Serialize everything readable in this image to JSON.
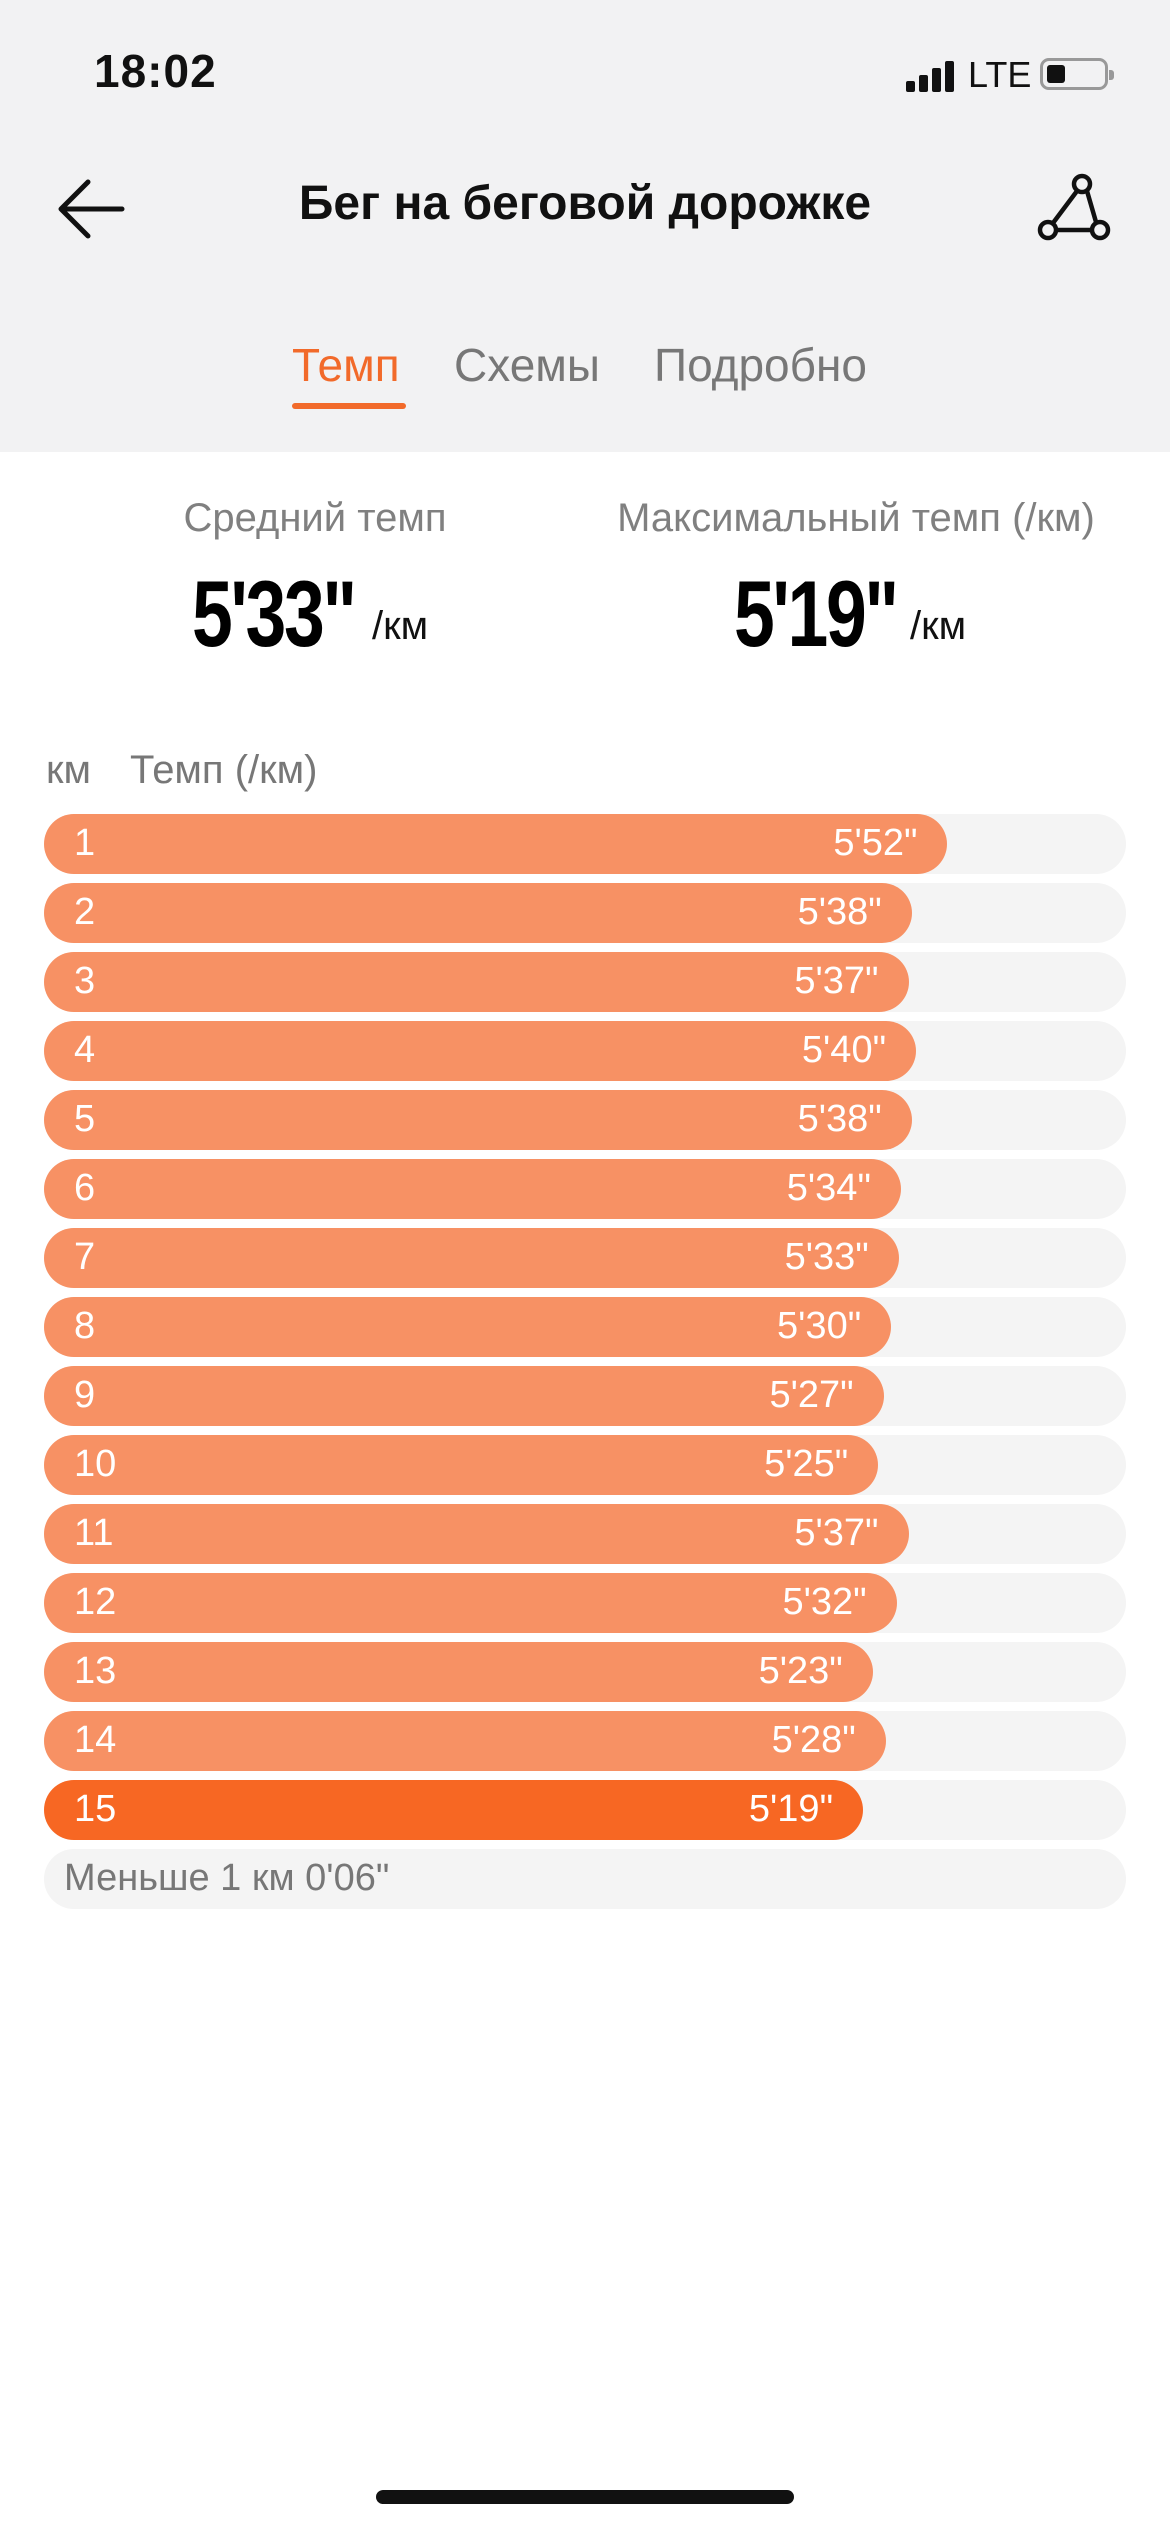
{
  "status_bar": {
    "time": "18:02",
    "network": "LTE",
    "battery": "low",
    "icons": [
      "signal-icon",
      "battery-icon"
    ]
  },
  "header": {
    "title": "Бег на беговой дорожке",
    "back_icon": "arrow-left-icon",
    "share_icon": "share-icon"
  },
  "tabs": [
    {
      "label": "Темп",
      "active": true
    },
    {
      "label": "Схемы",
      "active": false
    },
    {
      "label": "Подробно",
      "active": false
    }
  ],
  "summary": {
    "avg_label": "Средний темп",
    "avg_value": "5'33\"",
    "avg_unit": "/км",
    "max_label": "Максимальный темп (/км)",
    "max_value": "5'19\"",
    "max_unit": "/км"
  },
  "table": {
    "col_km": "км",
    "col_pace": "Темп (/км)",
    "splits": [
      {
        "km": "1",
        "pace": "5'52\"",
        "fill": 0.835
      },
      {
        "km": "2",
        "pace": "5'38\"",
        "fill": 0.802
      },
      {
        "km": "3",
        "pace": "5'37\"",
        "fill": 0.799
      },
      {
        "km": "4",
        "pace": "5'40\"",
        "fill": 0.806
      },
      {
        "km": "5",
        "pace": "5'38\"",
        "fill": 0.802
      },
      {
        "km": "6",
        "pace": "5'34\"",
        "fill": 0.792
      },
      {
        "km": "7",
        "pace": "5'33\"",
        "fill": 0.79
      },
      {
        "km": "8",
        "pace": "5'30\"",
        "fill": 0.783
      },
      {
        "km": "9",
        "pace": "5'27\"",
        "fill": 0.776
      },
      {
        "km": "10",
        "pace": "5'25\"",
        "fill": 0.771
      },
      {
        "km": "11",
        "pace": "5'37\"",
        "fill": 0.799
      },
      {
        "km": "12",
        "pace": "5'32\"",
        "fill": 0.788
      },
      {
        "km": "13",
        "pace": "5'23\"",
        "fill": 0.766
      },
      {
        "km": "14",
        "pace": "5'28\"",
        "fill": 0.778
      },
      {
        "km": "15",
        "pace": "5'19\"",
        "fill": 0.757,
        "best": true
      }
    ],
    "remainder": "Меньше 1 км 0'06\""
  },
  "colors": {
    "accent": "#f26a2a",
    "bar": "#f79164",
    "bar_best": "#f76723",
    "track": "#f4f4f4"
  }
}
